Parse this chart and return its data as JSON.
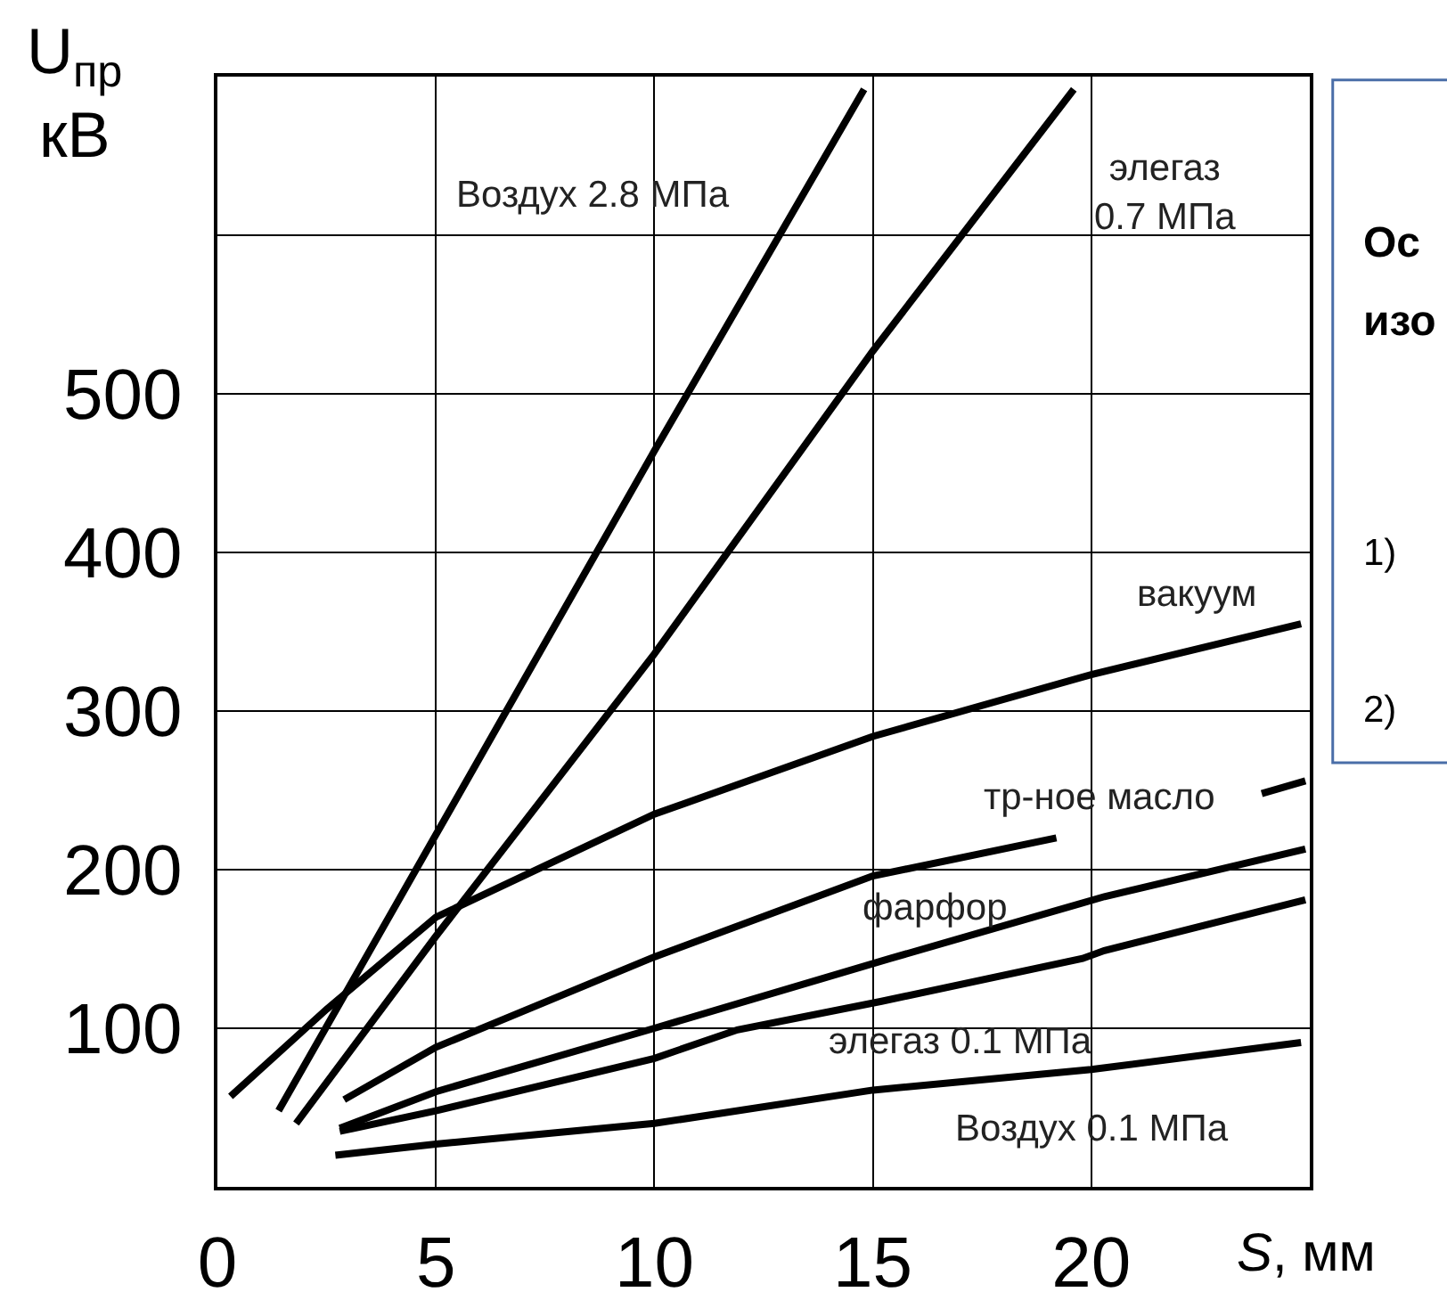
{
  "chart_data": {
    "type": "line",
    "xlabel": "S, мм",
    "ylabel": "U$_{пр}$ кВ",
    "xlim": [
      0,
      25
    ],
    "xticks": [
      0,
      5,
      10,
      15,
      20
    ],
    "ylim": [
      0,
      700
    ],
    "yticks": [
      100,
      200,
      300,
      400,
      500,
      {
        "value": 600,
        "label": null
      }
    ],
    "grid": true,
    "marker": "none",
    "line_style": "solid",
    "series": [
      {
        "name": "Воздух 2.8 МПа",
        "color": "#000000",
        "x": [
          1.4,
          5,
          10,
          14.8
        ],
        "values": [
          48,
          222,
          464,
          692
        ]
      },
      {
        "name": "элегаз\n0.7 МПа",
        "color": "#000000",
        "x": [
          1.8,
          5,
          10,
          15,
          19.6
        ],
        "values": [
          40,
          158,
          336,
          527,
          692
        ]
      },
      {
        "name": "вакуум",
        "color": "#000000",
        "x": [
          0.3,
          2.5,
          5,
          10,
          15,
          20,
          24.8
        ],
        "values": [
          57,
          112,
          170,
          235,
          284,
          323,
          355
        ]
      },
      {
        "name": "тр-ное масло",
        "color": "#000000",
        "x": [
          2.9,
          5,
          10,
          15,
          19.2,
          21.5,
          23.9,
          24.9
        ],
        "values": [
          55,
          88,
          145,
          196,
          220,
          null,
          248,
          256
        ]
      },
      {
        "name": "фарфор",
        "color": "#000000",
        "x": [
          2.8,
          5,
          10,
          15.4,
          20.3,
          24.9
        ],
        "values": [
          37,
          60,
          100,
          144,
          183,
          213
        ]
      },
      {
        "name": "элегаз 0.1 МПа",
        "color": "#000000",
        "x": [
          2.8,
          5,
          10,
          11.9,
          15.2,
          19.8,
          20.3,
          24.9
        ],
        "values": [
          35,
          48,
          81,
          99,
          117,
          144,
          149,
          181
        ]
      },
      {
        "name": "Воздух 0.1 МПа",
        "color": "#000000",
        "x": [
          2.7,
          5,
          10,
          15,
          20,
          24.8
        ],
        "values": [
          20,
          27,
          40,
          61,
          74,
          91
        ]
      }
    ],
    "annotations": [
      "Ос",
      "изо",
      "1)",
      "2)"
    ]
  }
}
